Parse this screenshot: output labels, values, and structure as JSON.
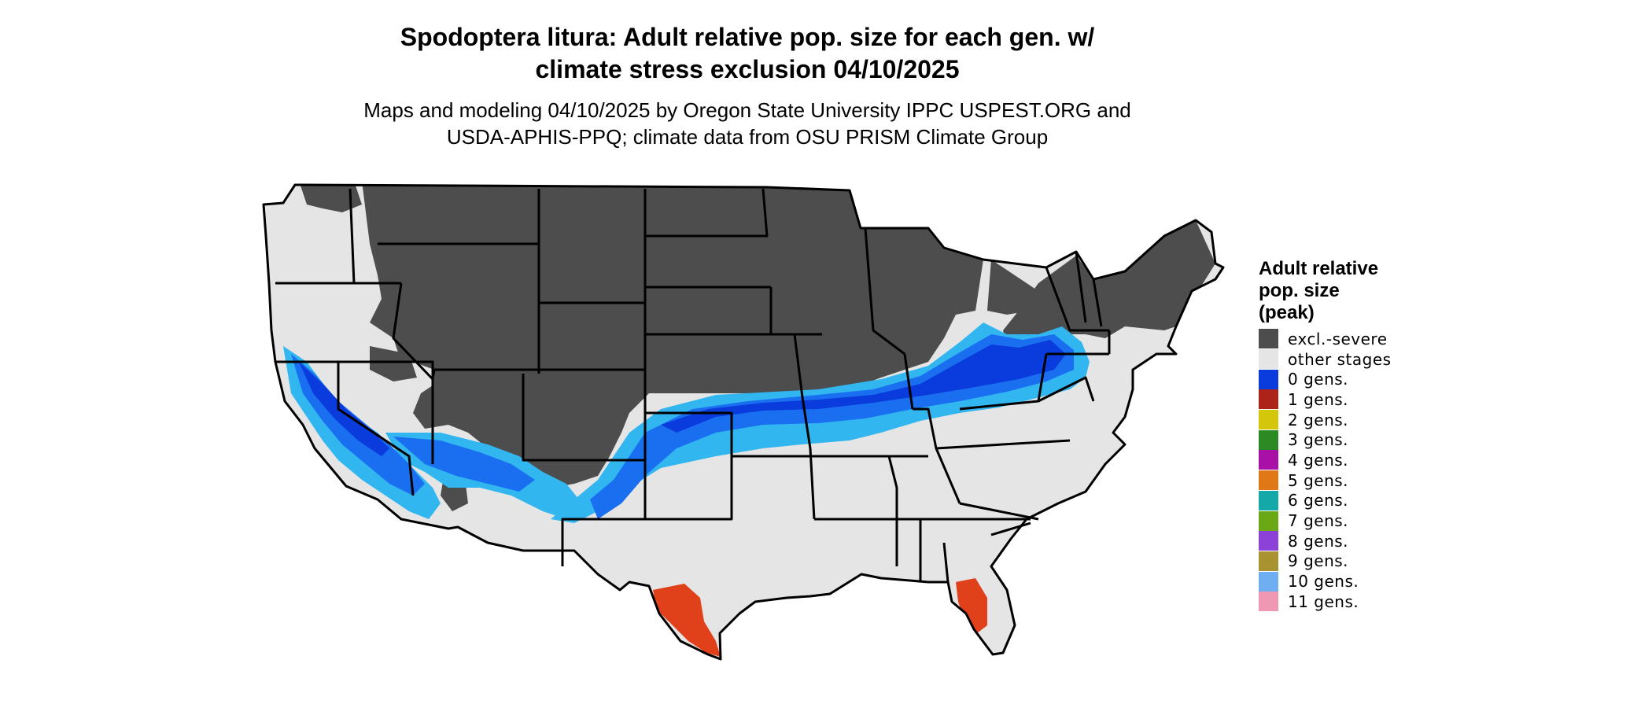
{
  "title": "Spodoptera litura: Adult relative pop. size for each gen. w/ climate stress exclusion 04/10/2025",
  "title_lines": [
    "Spodoptera litura: Adult relative pop. size for each gen. w/",
    "climate stress exclusion 04/10/2025"
  ],
  "subtitle_lines": [
    "Maps and modeling 04/10/2025 by Oregon State University IPPC USPEST.ORG and",
    "USDA-APHIS-PPQ; climate data from OSU PRISM Climate Group"
  ],
  "map": {
    "region": "Contiguous United States",
    "boundaries": "state outlines"
  },
  "legend": {
    "title_lines": [
      "Adult relative",
      "pop. size",
      "(peak)"
    ],
    "items": [
      {
        "label": "excl.-severe",
        "color": "#4d4d4d"
      },
      {
        "label": "other stages",
        "color": "#e5e5e5"
      },
      {
        "label": "0 gens.",
        "color": "#0a3bdc"
      },
      {
        "label": "1 gens.",
        "color": "#ad2219"
      },
      {
        "label": "2 gens.",
        "color": "#d4c60b"
      },
      {
        "label": "3 gens.",
        "color": "#2b8a24"
      },
      {
        "label": "4 gens.",
        "color": "#a810a8"
      },
      {
        "label": "5 gens.",
        "color": "#e07817"
      },
      {
        "label": "6 gens.",
        "color": "#14a8a8"
      },
      {
        "label": "7 gens.",
        "color": "#6ba815"
      },
      {
        "label": "8 gens.",
        "color": "#8c42d9"
      },
      {
        "label": "9 gens.",
        "color": "#a89330"
      },
      {
        "label": "10 gens.",
        "color": "#6faef0"
      },
      {
        "label": "11 gens.",
        "color": "#f097b4"
      }
    ]
  },
  "colors": {
    "excluded": "#4d4d4d",
    "other": "#e5e5e5",
    "gen0": "#0a3bdc",
    "gen0_light": "#1a6ff0",
    "gen10": "#32b6f0",
    "gen1": "#e0401a",
    "border": "#000000"
  }
}
